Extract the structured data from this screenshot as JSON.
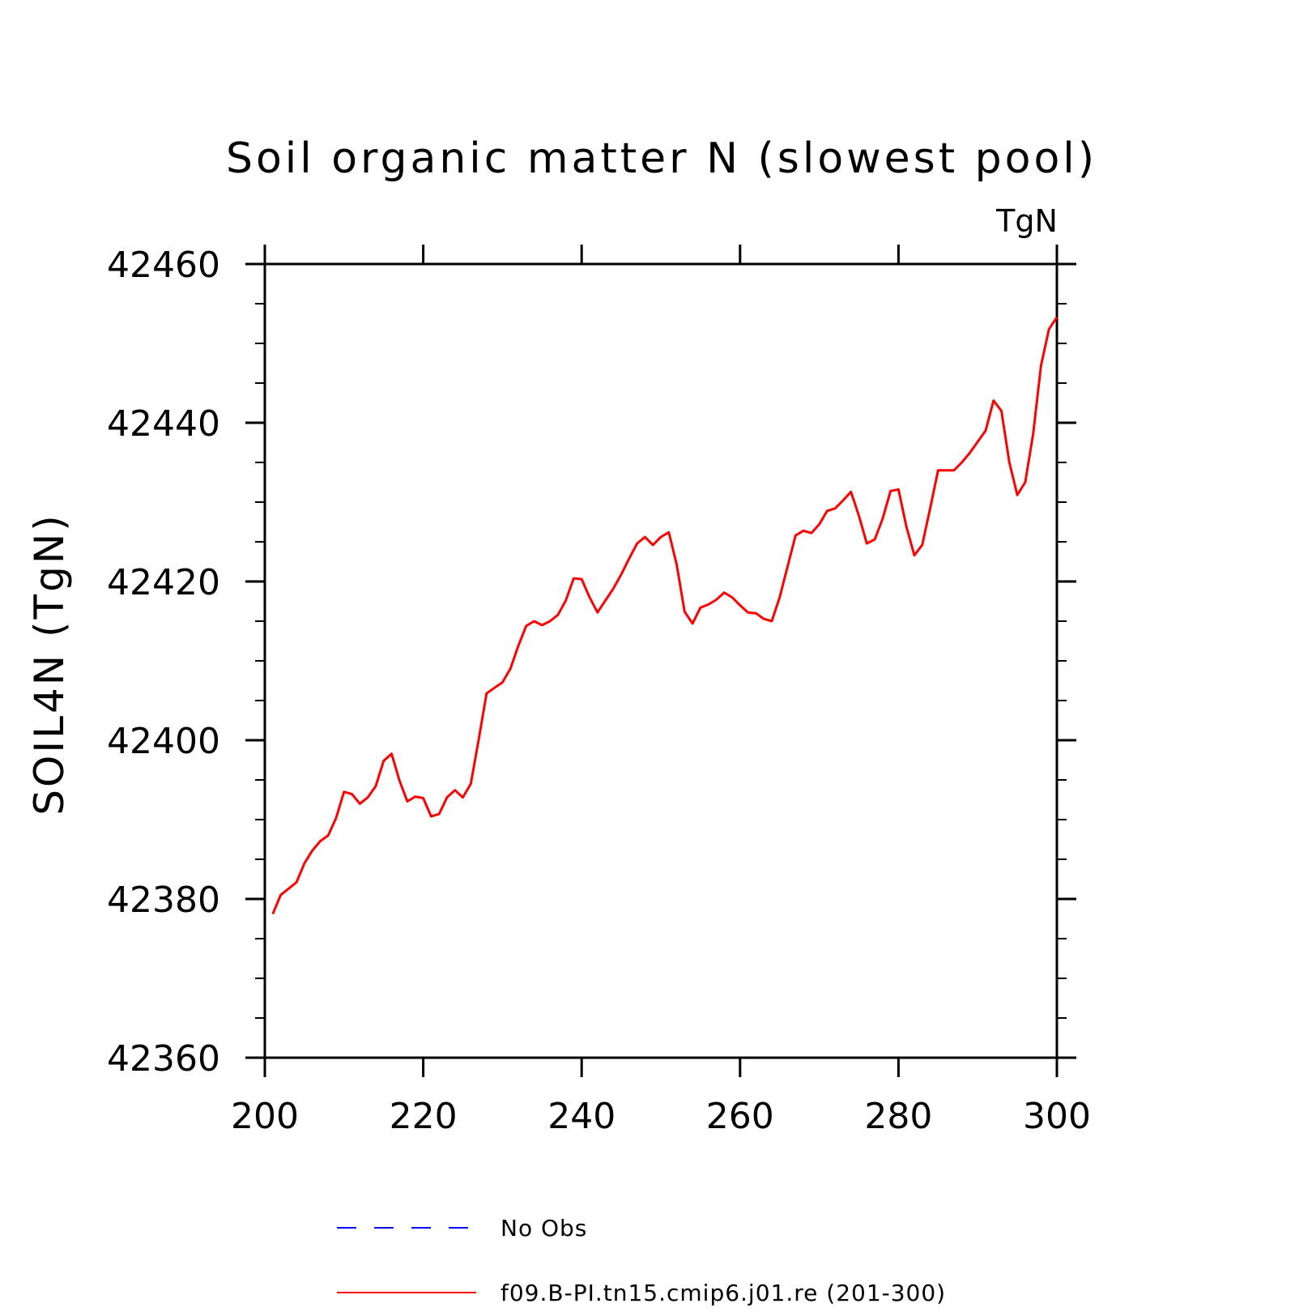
{
  "chart_data": {
    "type": "line",
    "title": "Soil organic matter N (slowest pool)",
    "units_label": "TgN",
    "ylabel": "SOIL4N  (TgN)",
    "xlabel": "",
    "xlim": [
      200,
      300
    ],
    "ylim": [
      42360,
      42460
    ],
    "x_ticks": [
      200,
      220,
      240,
      260,
      280,
      300
    ],
    "y_ticks": [
      42360,
      42380,
      42400,
      42420,
      42440,
      42460
    ],
    "y_minor_step": 5,
    "grid": false,
    "legend_position": "bottom",
    "series": [
      {
        "name": "f09.B-PI.tn15.cmip6.j01.re (201-300)",
        "color": "#ff0000",
        "style": "solid",
        "x": [
          201,
          202,
          203,
          204,
          205,
          206,
          207,
          208,
          209,
          210,
          211,
          212,
          213,
          214,
          215,
          216,
          217,
          218,
          219,
          220,
          221,
          222,
          223,
          224,
          225,
          226,
          227,
          228,
          229,
          230,
          231,
          232,
          233,
          234,
          235,
          236,
          237,
          238,
          239,
          240,
          241,
          242,
          243,
          244,
          245,
          246,
          247,
          248,
          249,
          250,
          251,
          252,
          253,
          254,
          255,
          256,
          257,
          258,
          259,
          260,
          261,
          262,
          263,
          264,
          265,
          266,
          267,
          268,
          269,
          270,
          271,
          272,
          273,
          274,
          275,
          276,
          277,
          278,
          279,
          280,
          281,
          282,
          283,
          284,
          285,
          286,
          287,
          288,
          289,
          290,
          291,
          292,
          293,
          294,
          295,
          296,
          297,
          298,
          299,
          300
        ],
        "values": [
          42378.1,
          42380.5,
          42381.3,
          42382.1,
          42384.5,
          42386.1,
          42387.3,
          42388.0,
          42390.2,
          42393.5,
          42393.2,
          42392.0,
          42392.8,
          42394.2,
          42397.4,
          42398.3,
          42394.9,
          42392.3,
          42392.9,
          42392.7,
          42390.4,
          42390.7,
          42392.8,
          42393.7,
          42392.8,
          42394.5,
          42400.1,
          42405.9,
          42406.6,
          42407.3,
          42409.0,
          42411.9,
          42414.4,
          42415.0,
          42414.5,
          42415.0,
          42415.8,
          42417.6,
          42420.4,
          42420.3,
          42418.0,
          42416.1,
          42417.6,
          42419.1,
          42420.9,
          42422.9,
          42424.8,
          42425.6,
          42424.6,
          42425.6,
          42426.2,
          42422.1,
          42416.2,
          42414.7,
          42416.7,
          42417.1,
          42417.7,
          42418.6,
          42418.0,
          42417.0,
          42416.1,
          42416.0,
          42415.3,
          42415.0,
          42418.0,
          42421.9,
          42425.8,
          42426.4,
          42426.1,
          42427.2,
          42428.9,
          42429.2,
          42430.2,
          42431.3,
          42428.3,
          42424.8,
          42425.3,
          42427.9,
          42431.4,
          42431.6,
          42426.9,
          42423.3,
          42424.6,
          42429.2,
          42434.0,
          42434.0,
          42434.0,
          42435.0,
          42436.2,
          42437.6,
          42439.0,
          42442.8,
          42441.5,
          42435.0,
          42430.9,
          42432.5,
          42438.6,
          42447.2,
          42451.8,
          42453.3
        ]
      }
    ],
    "legend": [
      {
        "label": "No Obs",
        "color": "#0000ff",
        "style": "dashed"
      },
      {
        "label": "f09.B-PI.tn15.cmip6.j01.re (201-300)",
        "color": "#ff0000",
        "style": "solid"
      }
    ]
  }
}
